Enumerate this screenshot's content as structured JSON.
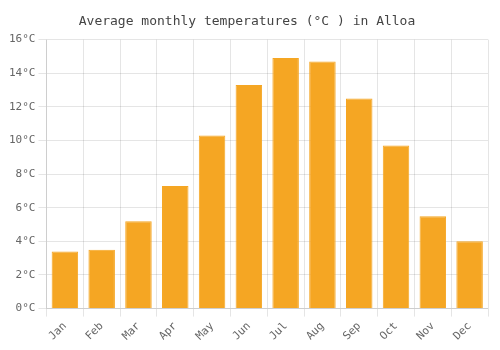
{
  "chart_data": {
    "type": "bar",
    "title": "Average monthly temperatures (°C ) in Alloa",
    "categories": [
      "Jan",
      "Feb",
      "Mar",
      "Apr",
      "May",
      "Jun",
      "Jul",
      "Aug",
      "Sep",
      "Oct",
      "Nov",
      "Dec"
    ],
    "values": [
      3.4,
      3.5,
      5.2,
      7.3,
      10.3,
      13.3,
      14.9,
      14.7,
      12.5,
      9.7,
      5.5,
      4.0
    ],
    "color": "#F5A623",
    "ylim": [
      0,
      16
    ],
    "yticks": [
      {
        "value": 0,
        "label": "0°C"
      },
      {
        "value": 2,
        "label": "2°C"
      },
      {
        "value": 4,
        "label": "4°C"
      },
      {
        "value": 6,
        "label": "6°C"
      },
      {
        "value": 8,
        "label": "8°C"
      },
      {
        "value": 10,
        "label": "10°C"
      },
      {
        "value": 12,
        "label": "12°C"
      },
      {
        "value": 14,
        "label": "14°C"
      },
      {
        "value": 16,
        "label": "16°C"
      }
    ],
    "grid": true
  }
}
